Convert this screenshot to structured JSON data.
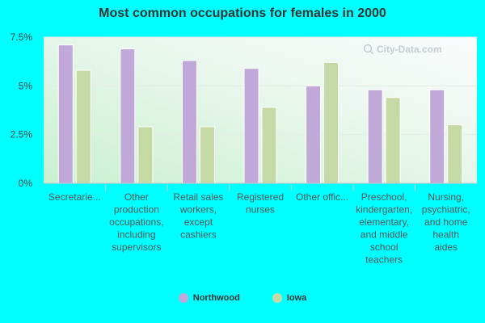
{
  "chart_data": {
    "type": "bar",
    "title": "Most common occupations for females in 2000",
    "xlabel": "",
    "ylabel": "",
    "ylim": [
      0,
      7.5
    ],
    "yticks": [
      "0%",
      "2.5%",
      "5%",
      "7.5%"
    ],
    "grid": true,
    "legend_placement": "bottom",
    "categories": [
      "Secretarie...",
      "Other production occupations, including supervisors",
      "Retail sales workers, except cashiers",
      "Registered nurses",
      "Other offic...",
      "Preschool, kindergarten, elementary, and middle school teachers",
      "Nursing, psychiatric, and home health aides"
    ],
    "category_lines": [
      [
        "Secretarie..."
      ],
      [
        "Other",
        "production",
        "occupations,",
        "including",
        "supervisors"
      ],
      [
        "Retail sales",
        "workers,",
        "except",
        "cashiers"
      ],
      [
        "Registered",
        "nurses"
      ],
      [
        "Other offic..."
      ],
      [
        "Preschool,",
        "kindergarten,",
        "elementary,",
        "and middle",
        "school",
        "teachers"
      ],
      [
        "Nursing,",
        "psychiatric,",
        "and home",
        "health",
        "aides"
      ]
    ],
    "series": [
      {
        "name": "Northwood",
        "color": "#c0a8d8",
        "values": [
          7.1,
          6.9,
          6.3,
          5.9,
          5.0,
          4.8,
          4.8
        ]
      },
      {
        "name": "Iowa",
        "color": "#c4d9a4",
        "values": [
          5.8,
          2.9,
          2.9,
          3.9,
          6.2,
          4.4,
          3.0
        ]
      }
    ]
  },
  "watermark": "City-Data.com"
}
